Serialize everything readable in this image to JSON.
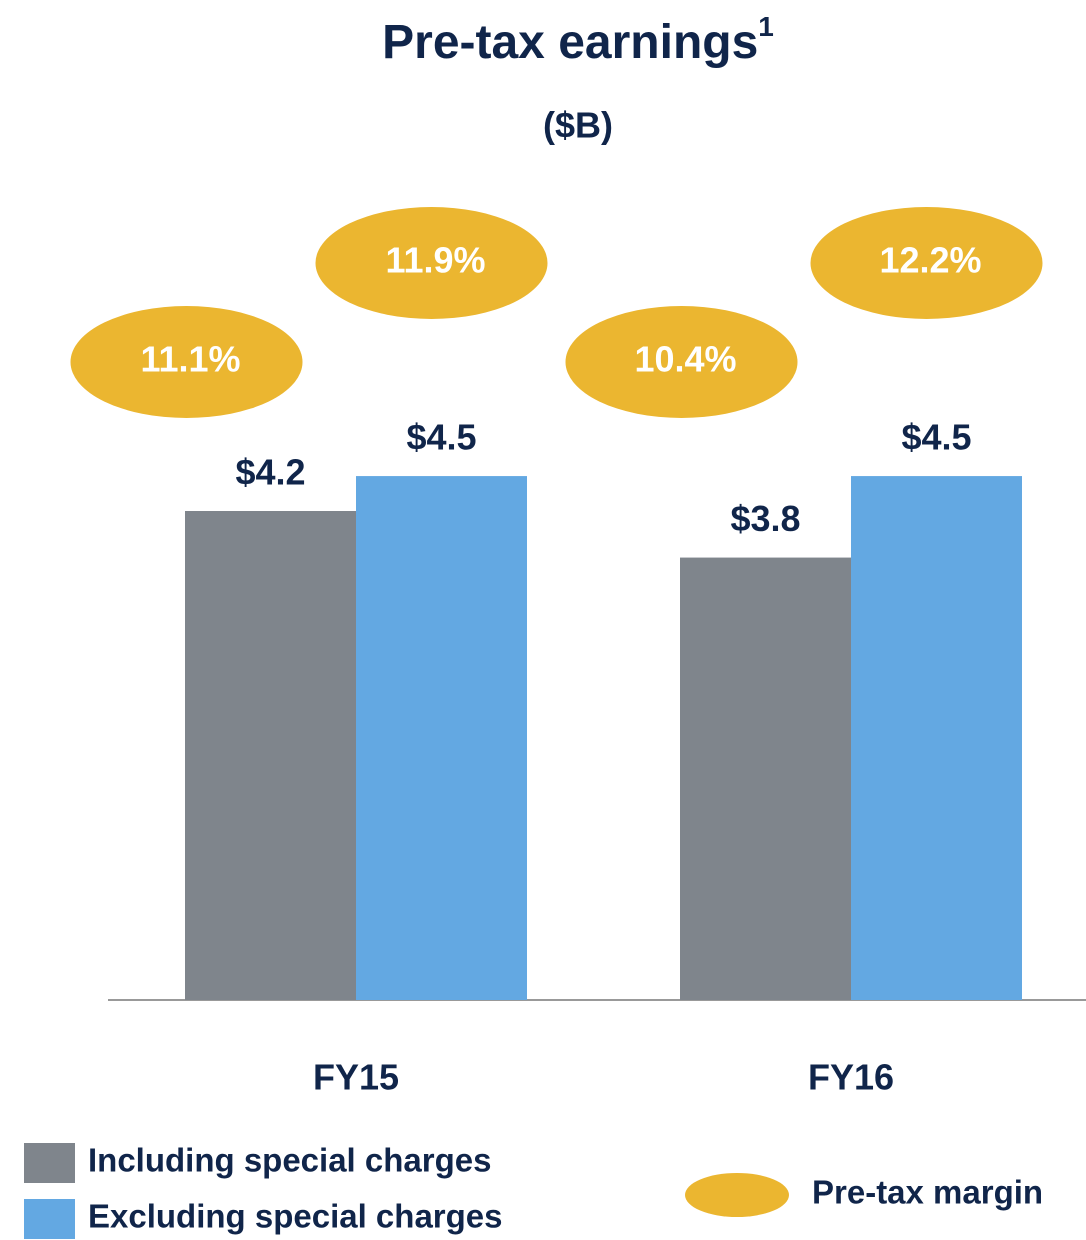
{
  "chart_data": {
    "type": "bar",
    "title": "Pre-tax earnings",
    "title_superscript": "1",
    "subtitle": "($B)",
    "categories": [
      "FY15",
      "FY16"
    ],
    "series": [
      {
        "name": "Including special charges",
        "color": "#7f858c",
        "values": [
          4.2,
          3.8
        ],
        "value_labels": [
          "$4.2",
          "$3.8"
        ],
        "margin_values": [
          11.1,
          10.4
        ],
        "margin_labels": [
          "11.1%",
          "10.4%"
        ]
      },
      {
        "name": "Excluding special charges",
        "color": "#63a8e2",
        "values": [
          4.5,
          4.5
        ],
        "value_labels": [
          "$4.5",
          "$4.5"
        ],
        "margin_values": [
          11.9,
          12.2
        ],
        "margin_labels": [
          "11.9%",
          "12.2%"
        ]
      }
    ],
    "margin_name": "Pre-tax margin",
    "margin_color": "#ebb630",
    "ylim": [
      0,
      7
    ]
  }
}
